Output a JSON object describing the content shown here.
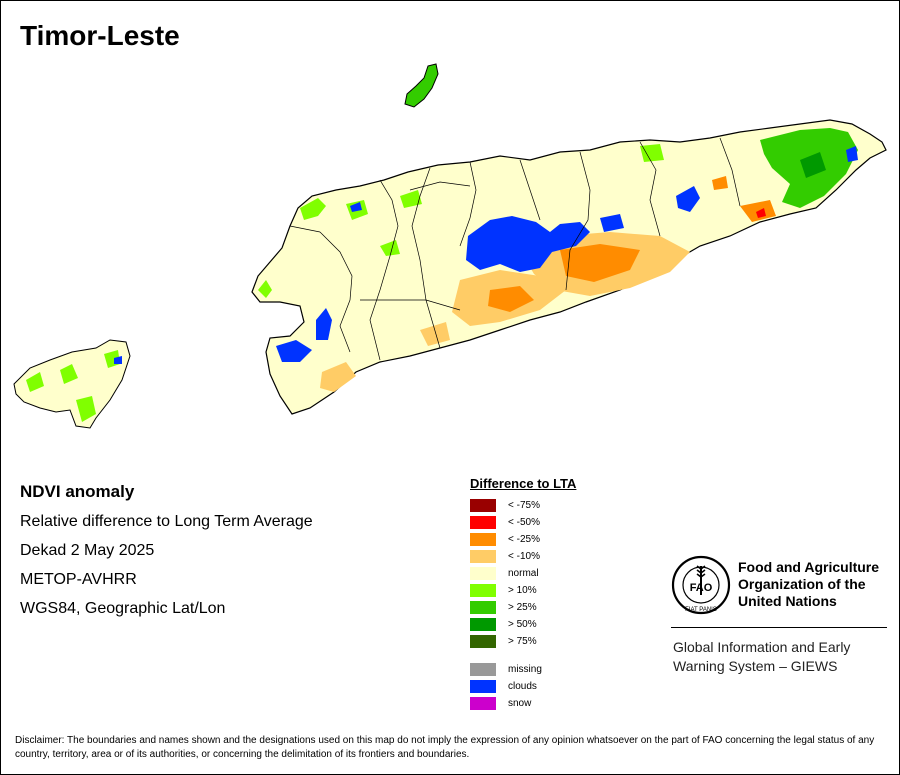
{
  "map": {
    "title": "Timor-Leste"
  },
  "info": {
    "heading": "NDVI anomaly",
    "lines": [
      "Relative difference to Long Term Average",
      "Dekad 2 May 2025",
      "METOP-AVHRR",
      "WGS84, Geographic Lat/Lon"
    ]
  },
  "legend": {
    "title": "Difference to LTA",
    "classes": [
      {
        "label": "< -75%",
        "color": "#990000"
      },
      {
        "label": "< -50%",
        "color": "#ff0000"
      },
      {
        "label": "< -25%",
        "color": "#ff8c00"
      },
      {
        "label": "< -10%",
        "color": "#ffcc66"
      },
      {
        "label": "normal",
        "color": "#ffffcc"
      },
      {
        "label": "> 10%",
        "color": "#80ff00"
      },
      {
        "label": "> 25%",
        "color": "#33cc00"
      },
      {
        "label": "> 50%",
        "color": "#009900"
      },
      {
        "label": "> 75%",
        "color": "#336600"
      }
    ],
    "extra": [
      {
        "label": "missing",
        "color": "#999999"
      },
      {
        "label": "clouds",
        "color": "#0033ff"
      },
      {
        "label": "snow",
        "color": "#cc00cc"
      }
    ]
  },
  "fao": {
    "name_line1": "Food and Agriculture",
    "name_line2": "Organization of the",
    "name_line3": "United Nations",
    "logo_letters": "FAO",
    "motto": "FIAT PANIS",
    "giews_line1": "Global Information and Early",
    "giews_line2": "Warning System – GIEWS"
  },
  "disclaimer": "Disclaimer: The boundaries and names shown and the designations used on this map do not imply the expression of any opinion whatsoever on the part of FAO concerning the legal status of any country, territory, area or of its authorities, or concerning the delimitation of its frontiers and boundaries."
}
